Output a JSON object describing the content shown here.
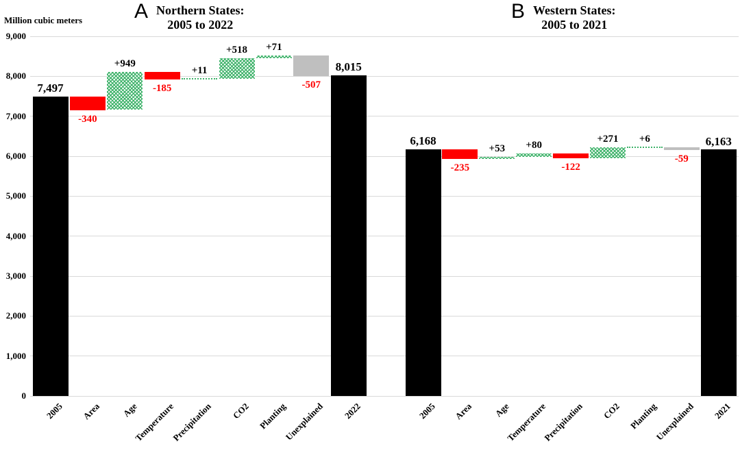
{
  "chart_data": {
    "type": "bar",
    "subtype": "waterfall",
    "unit_label": "Million cubic meters",
    "y_axis": {
      "min": 0,
      "max": 9000,
      "step": 1000,
      "tick_labels": [
        "0",
        "1,000",
        "2,000",
        "3,000",
        "4,000",
        "5,000",
        "6,000",
        "7,000",
        "8,000",
        "9,000"
      ],
      "grid": true
    },
    "colors": {
      "total_bar": "#000000",
      "decrease_bar": "#fe0000",
      "increase_bar": "#3db269",
      "unexplained_bar": "#bfbfbf",
      "gridline": "#d9d9d9",
      "positive_label": "#000000",
      "negative_label": "#fe0000"
    },
    "panels": [
      {
        "letter": "A",
        "title_line1": "Northern States:",
        "title_line2": "2005 to 2022",
        "categories": [
          "2005",
          "Area",
          "Age",
          "Temperature",
          "Precipitation",
          "CO2",
          "Planting",
          "Unexplained",
          "2022"
        ],
        "bars": [
          {
            "category": "2005",
            "type": "total",
            "value": 7497,
            "label": "7,497"
          },
          {
            "category": "Area",
            "type": "delta",
            "value": -340,
            "label": "-340"
          },
          {
            "category": "Age",
            "type": "delta",
            "value": 949,
            "label": "+949"
          },
          {
            "category": "Temperature",
            "type": "delta",
            "value": -185,
            "label": "-185"
          },
          {
            "category": "Precipitation",
            "type": "delta",
            "value": 11,
            "label": "+11"
          },
          {
            "category": "CO2",
            "type": "delta",
            "value": 518,
            "label": "+518"
          },
          {
            "category": "Planting",
            "type": "delta",
            "value": 71,
            "label": "+71"
          },
          {
            "category": "Unexplained",
            "type": "delta",
            "value": -507,
            "label": "-507"
          },
          {
            "category": "2022",
            "type": "total",
            "value": 8015,
            "label": "8,015"
          }
        ]
      },
      {
        "letter": "B",
        "title_line1": "Western States:",
        "title_line2": "2005 to 2021",
        "categories": [
          "2005",
          "Area",
          "Age",
          "Temperature",
          "Precipitation",
          "CO2",
          "Planting",
          "Unexplained",
          "2021"
        ],
        "bars": [
          {
            "category": "2005",
            "type": "total",
            "value": 6168,
            "label": "6,168"
          },
          {
            "category": "Area",
            "type": "delta",
            "value": -235,
            "label": "-235"
          },
          {
            "category": "Age",
            "type": "delta",
            "value": 53,
            "label": "+53"
          },
          {
            "category": "Temperature",
            "type": "delta",
            "value": 80,
            "label": "+80"
          },
          {
            "category": "Precipitation",
            "type": "delta",
            "value": -122,
            "label": "-122"
          },
          {
            "category": "CO2",
            "type": "delta",
            "value": 271,
            "label": "+271"
          },
          {
            "category": "Planting",
            "type": "delta",
            "value": 6,
            "label": "+6"
          },
          {
            "category": "Unexplained",
            "type": "delta",
            "value": -59,
            "label": "-59"
          },
          {
            "category": "2021",
            "type": "total",
            "value": 6163,
            "label": "6,163"
          }
        ]
      }
    ]
  }
}
